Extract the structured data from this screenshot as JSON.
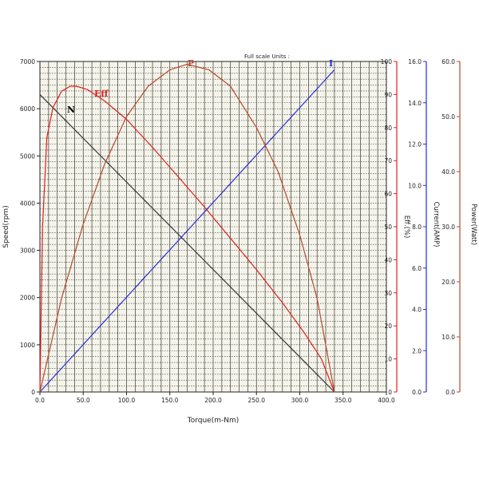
{
  "chart_data": {
    "type": "line",
    "title": "",
    "note": "Full scale Units :",
    "xlabel": "Torque(m-Nm)",
    "xlim": [
      0,
      400
    ],
    "x_ticks": [
      "0.0",
      "50.0",
      "100.0",
      "150.0",
      "200.0",
      "250.0",
      "300.0",
      "350.0",
      "400.0"
    ],
    "grid": true,
    "axes": [
      {
        "id": "speed",
        "label": "Speed(rpm)",
        "lim": [
          0,
          7000
        ],
        "color": "#222222",
        "ticks": [
          "0",
          "1000",
          "2000",
          "3000",
          "4000",
          "5000",
          "6000",
          "7000"
        ]
      },
      {
        "id": "eff",
        "label": "Eff.(%)",
        "lim": [
          0,
          100
        ],
        "color": "#e0201a",
        "ticks": [
          "0",
          "10",
          "20",
          "30",
          "40",
          "50",
          "60",
          "70",
          "80",
          "90",
          "100"
        ]
      },
      {
        "id": "current",
        "label": "Current(AMP)",
        "lim": [
          0,
          16
        ],
        "color": "#2a2ad8",
        "ticks": [
          "0.0",
          "2.0",
          "4.0",
          "6.0",
          "8.0",
          "10.0",
          "12.0",
          "14.0",
          "16.0"
        ]
      },
      {
        "id": "power",
        "label": "Power(Watt)",
        "lim": [
          0,
          60
        ],
        "color": "#b84a2a",
        "ticks": [
          "0.0",
          "10.0",
          "20.0",
          "30.0",
          "40.0",
          "50.0",
          "60.0"
        ]
      }
    ],
    "series": [
      {
        "name": "N",
        "axis": "speed",
        "color": "#333333",
        "x": [
          0,
          340
        ],
        "y": [
          6300,
          0
        ]
      },
      {
        "name": "Eff",
        "axis": "eff",
        "color": "#e0201a",
        "x": [
          0,
          3,
          8,
          15,
          25,
          35,
          42,
          55,
          75,
          100,
          130,
          160,
          190,
          220,
          250,
          280,
          305,
          325,
          340
        ],
        "y": [
          0,
          50,
          77,
          86,
          91,
          92.5,
          92.5,
          91.5,
          88,
          82.5,
          74,
          65,
          56,
          46.5,
          37,
          27,
          18,
          10,
          0
        ]
      },
      {
        "name": "I",
        "axis": "current",
        "color": "#2a2ad8",
        "x": [
          0,
          340
        ],
        "y": [
          0,
          15.6
        ]
      },
      {
        "name": "P",
        "axis": "power",
        "color": "#b84a2a",
        "x": [
          0,
          25,
          50,
          75,
          100,
          125,
          150,
          170,
          195,
          220,
          250,
          275,
          300,
          320,
          340
        ],
        "y": [
          0,
          17,
          30.5,
          41.5,
          50,
          55.5,
          58.5,
          59.5,
          58.5,
          55.5,
          48,
          40,
          28.5,
          17,
          0
        ]
      }
    ]
  }
}
